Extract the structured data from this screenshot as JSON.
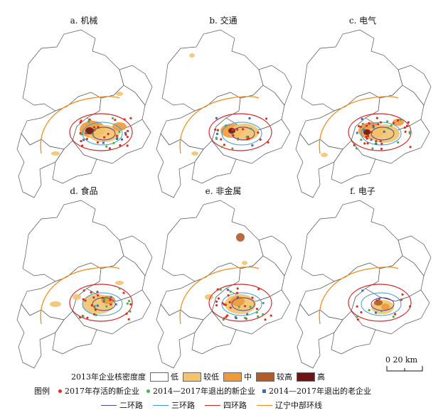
{
  "panels": [
    {
      "title": "a. 机械"
    },
    {
      "title": "b. 交通"
    },
    {
      "title": "c. 电气"
    },
    {
      "title": "d. 食品"
    },
    {
      "title": "e. 非金属"
    },
    {
      "title": "f. 电子"
    }
  ],
  "scale": {
    "label": "0  20 km"
  },
  "legend": {
    "heading": "图例",
    "density_title": "2013年企业核密度度",
    "density_classes": [
      {
        "label": "低",
        "color": "#ffffff"
      },
      {
        "label": "较低",
        "color": "#f2c46d"
      },
      {
        "label": "中",
        "color": "#ef9a3a"
      },
      {
        "label": "较高",
        "color": "#b15b2a"
      },
      {
        "label": "高",
        "color": "#6e1414"
      }
    ],
    "points": [
      {
        "label": "2017年存活的新企业",
        "color": "#d7301f",
        "shape": "dot"
      },
      {
        "label": "2014—2017年退出的新企业",
        "color": "#4daf4a",
        "shape": "dot"
      },
      {
        "label": "2014—2017年退出的老企业",
        "color": "#3a6fb5",
        "shape": "square"
      }
    ],
    "lines": [
      {
        "label": "二环路",
        "color": "#5e3c99"
      },
      {
        "label": "三环路",
        "color": "#3b9ad9"
      },
      {
        "label": "四环路",
        "color": "#d62728"
      },
      {
        "label": "辽宁中部环线",
        "color": "#f08c1a"
      }
    ]
  }
}
